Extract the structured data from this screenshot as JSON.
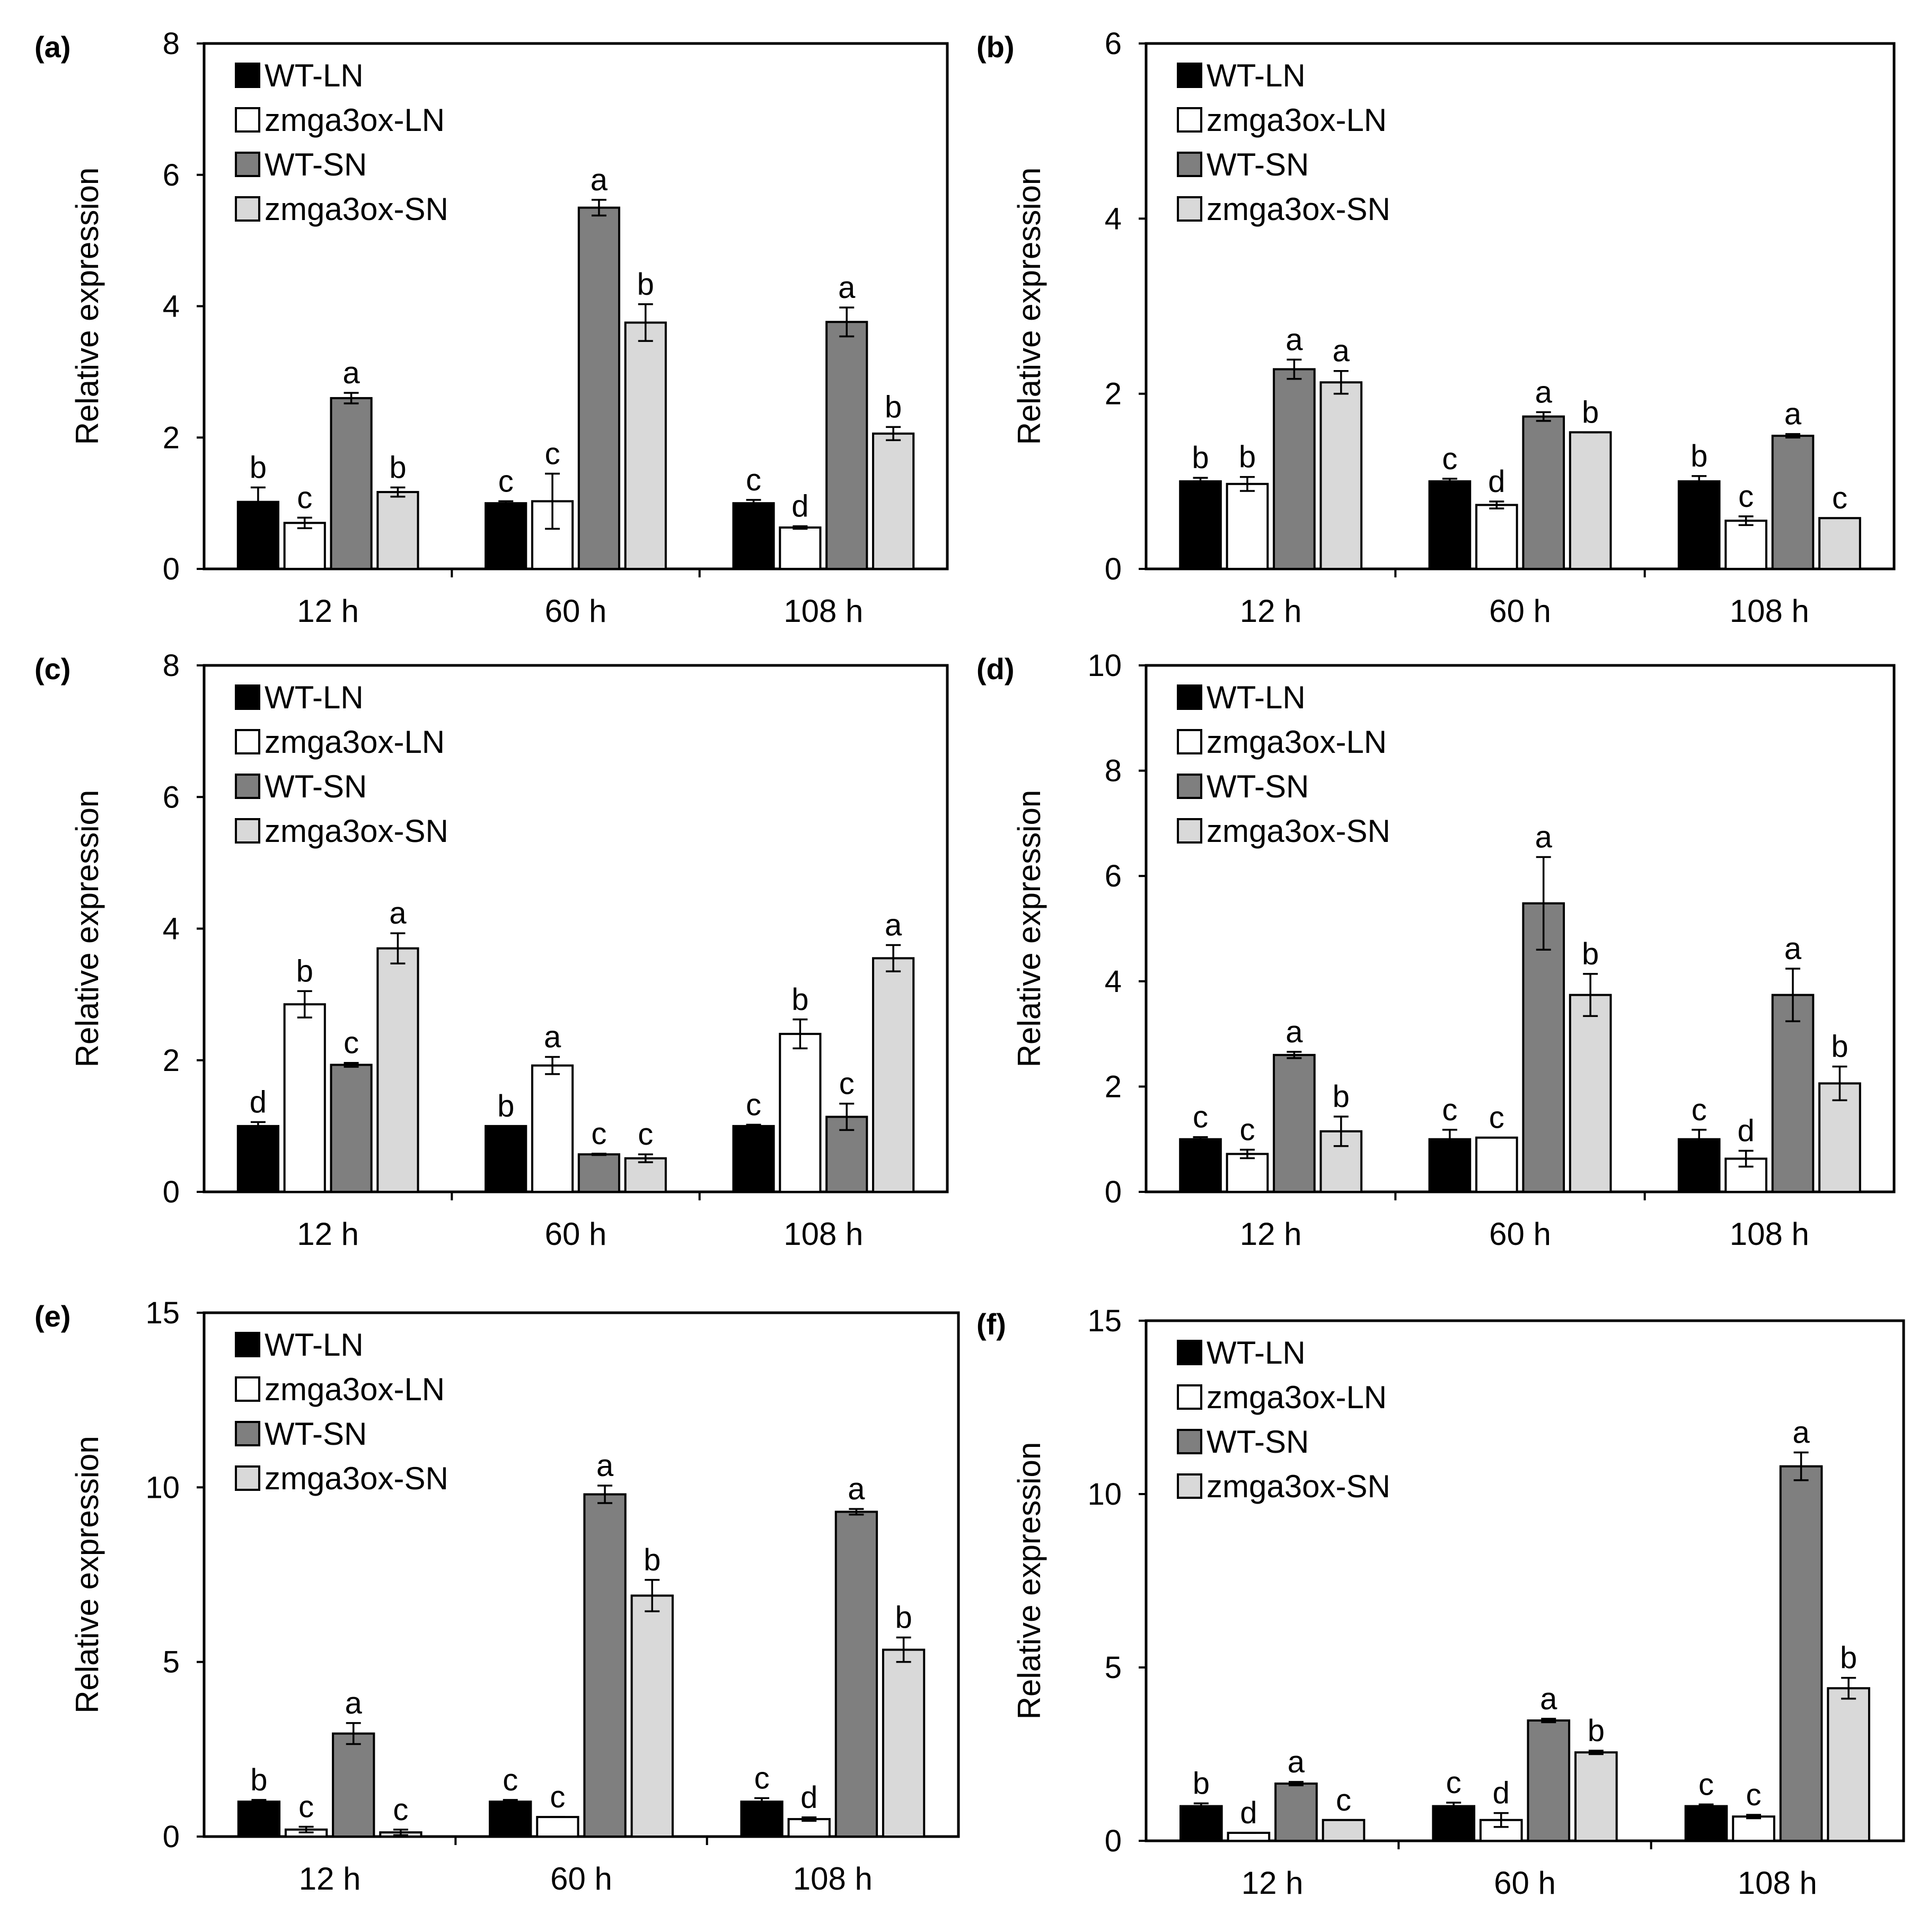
{
  "figure": {
    "legend_labels": [
      "WT-LN",
      "zmga3ox-LN",
      "WT-SN",
      "zmga3ox-SN"
    ],
    "series_colors": [
      "#000000",
      "#ffffff",
      "#7f7f7f",
      "#d9d9d9"
    ]
  },
  "chart_data": [
    {
      "panel": "(a)",
      "type": "bar",
      "ylabel": "Relative expression",
      "categories": [
        "12 h",
        "60 h",
        "108 h"
      ],
      "ylim": [
        0,
        8
      ],
      "yticks": [
        "0",
        "2",
        "4",
        "6",
        "8"
      ],
      "legend_position": "top-left",
      "series": [
        {
          "name": "WT-LN",
          "values": [
            1.02,
            1.0,
            1.0
          ],
          "errors": [
            0.22,
            0.03,
            0.05
          ],
          "sig": [
            "b",
            "c",
            "c"
          ]
        },
        {
          "name": "zmga3ox-LN",
          "values": [
            0.7,
            1.03,
            0.63
          ],
          "errors": [
            0.08,
            0.42,
            0.02
          ],
          "sig": [
            "c",
            "c",
            "d"
          ]
        },
        {
          "name": "WT-SN",
          "values": [
            2.6,
            5.5,
            3.76
          ],
          "errors": [
            0.08,
            0.12,
            0.22
          ],
          "sig": [
            "a",
            "a",
            "a"
          ]
        },
        {
          "name": "zmga3ox-SN",
          "values": [
            1.17,
            3.75,
            2.06
          ],
          "errors": [
            0.07,
            0.28,
            0.1
          ],
          "sig": [
            "b",
            "b",
            "b"
          ]
        }
      ]
    },
    {
      "panel": "(b)",
      "type": "bar",
      "ylabel": "Relative expression",
      "categories": [
        "12 h",
        "60 h",
        "108 h"
      ],
      "ylim": [
        0,
        6
      ],
      "yticks": [
        "0",
        "2",
        "4",
        "6"
      ],
      "legend_position": "top-left",
      "series": [
        {
          "name": "WT-LN",
          "values": [
            1.0,
            1.0,
            1.0
          ],
          "errors": [
            0.04,
            0.03,
            0.06
          ],
          "sig": [
            "b",
            "c",
            "b"
          ]
        },
        {
          "name": "zmga3ox-LN",
          "values": [
            0.97,
            0.73,
            0.55
          ],
          "errors": [
            0.08,
            0.04,
            0.05
          ],
          "sig": [
            "b",
            "d",
            "c"
          ]
        },
        {
          "name": "WT-SN",
          "values": [
            2.28,
            1.74,
            1.52
          ],
          "errors": [
            0.11,
            0.05,
            0.02
          ],
          "sig": [
            "a",
            "a",
            "a"
          ]
        },
        {
          "name": "zmga3ox-SN",
          "values": [
            2.13,
            1.56,
            0.58
          ],
          "errors": [
            0.13,
            0.0,
            0.0
          ],
          "sig": [
            "a",
            "b",
            "c"
          ]
        }
      ]
    },
    {
      "panel": "(c)",
      "type": "bar",
      "ylabel": "Relative expression",
      "categories": [
        "12 h",
        "60 h",
        "108 h"
      ],
      "ylim": [
        0,
        8
      ],
      "yticks": [
        "0",
        "2",
        "4",
        "6",
        "8"
      ],
      "legend_position": "top-left",
      "series": [
        {
          "name": "WT-LN",
          "values": [
            1.0,
            1.0,
            1.0
          ],
          "errors": [
            0.06,
            0.0,
            0.02
          ],
          "sig": [
            "d",
            "b",
            "c"
          ]
        },
        {
          "name": "zmga3ox-LN",
          "values": [
            2.85,
            1.92,
            2.4
          ],
          "errors": [
            0.2,
            0.13,
            0.22
          ],
          "sig": [
            "b",
            "a",
            "b"
          ]
        },
        {
          "name": "WT-SN",
          "values": [
            1.93,
            0.57,
            1.14
          ],
          "errors": [
            0.03,
            0.01,
            0.2
          ],
          "sig": [
            "c",
            "c",
            "c"
          ]
        },
        {
          "name": "zmga3ox-SN",
          "values": [
            3.7,
            0.51,
            3.55
          ],
          "errors": [
            0.23,
            0.06,
            0.2
          ],
          "sig": [
            "a",
            "c",
            "a"
          ]
        }
      ]
    },
    {
      "panel": "(d)",
      "type": "bar",
      "ylabel": "Relative expression",
      "categories": [
        "12 h",
        "60 h",
        "108 h"
      ],
      "ylim": [
        0,
        10
      ],
      "yticks": [
        "0",
        "2",
        "4",
        "6",
        "8",
        "10"
      ],
      "legend_position": "top-left",
      "series": [
        {
          "name": "WT-LN",
          "values": [
            1.0,
            1.0,
            1.0
          ],
          "errors": [
            0.04,
            0.18,
            0.18
          ],
          "sig": [
            "c",
            "c",
            "c"
          ]
        },
        {
          "name": "zmga3ox-LN",
          "values": [
            0.72,
            1.03,
            0.63
          ],
          "errors": [
            0.08,
            0.0,
            0.15
          ],
          "sig": [
            "c",
            "c",
            "d"
          ]
        },
        {
          "name": "WT-SN",
          "values": [
            2.6,
            5.48,
            3.74
          ],
          "errors": [
            0.06,
            0.88,
            0.5
          ],
          "sig": [
            "a",
            "a",
            "a"
          ]
        },
        {
          "name": "zmga3ox-SN",
          "values": [
            1.15,
            3.74,
            2.06
          ],
          "errors": [
            0.28,
            0.4,
            0.32
          ],
          "sig": [
            "b",
            "b",
            "b"
          ]
        }
      ]
    },
    {
      "panel": "(e)",
      "type": "bar",
      "ylabel": "Relative expression",
      "categories": [
        "12 h",
        "60 h",
        "108 h"
      ],
      "ylim": [
        0,
        15
      ],
      "yticks": [
        "0",
        "5",
        "10",
        "15"
      ],
      "legend_position": "top-left",
      "series": [
        {
          "name": "WT-LN",
          "values": [
            1.0,
            1.0,
            1.0
          ],
          "errors": [
            0.05,
            0.05,
            0.1
          ],
          "sig": [
            "b",
            "c",
            "c"
          ]
        },
        {
          "name": "zmga3ox-LN",
          "values": [
            0.2,
            0.56,
            0.5
          ],
          "errors": [
            0.08,
            0.0,
            0.05
          ],
          "sig": [
            "c",
            "c",
            "d"
          ]
        },
        {
          "name": "WT-SN",
          "values": [
            2.95,
            9.8,
            9.3
          ],
          "errors": [
            0.3,
            0.25,
            0.08
          ],
          "sig": [
            "a",
            "a",
            "a"
          ]
        },
        {
          "name": "zmga3ox-SN",
          "values": [
            0.12,
            6.9,
            5.35
          ],
          "errors": [
            0.08,
            0.45,
            0.35
          ],
          "sig": [
            "c",
            "b",
            "b"
          ]
        }
      ]
    },
    {
      "panel": "(f)",
      "type": "bar",
      "ylabel": "Relative expression",
      "categories": [
        "12 h",
        "60 h",
        "108 h"
      ],
      "ylim": [
        0,
        15
      ],
      "yticks": [
        "0",
        "5",
        "10",
        "15"
      ],
      "legend_position": "top-left",
      "series": [
        {
          "name": "WT-LN",
          "values": [
            1.0,
            1.0,
            1.0
          ],
          "errors": [
            0.08,
            0.1,
            0.05
          ],
          "sig": [
            "b",
            "c",
            "c"
          ]
        },
        {
          "name": "zmga3ox-LN",
          "values": [
            0.23,
            0.6,
            0.7
          ],
          "errors": [
            0.0,
            0.2,
            0.05
          ],
          "sig": [
            "d",
            "d",
            "c"
          ]
        },
        {
          "name": "WT-SN",
          "values": [
            1.65,
            3.47,
            10.8
          ],
          "errors": [
            0.05,
            0.05,
            0.4
          ],
          "sig": [
            "a",
            "a",
            "a"
          ]
        },
        {
          "name": "zmga3ox-SN",
          "values": [
            0.6,
            2.55,
            4.4
          ],
          "errors": [
            0.0,
            0.05,
            0.3
          ],
          "sig": [
            "c",
            "b",
            "b"
          ]
        }
      ]
    }
  ]
}
